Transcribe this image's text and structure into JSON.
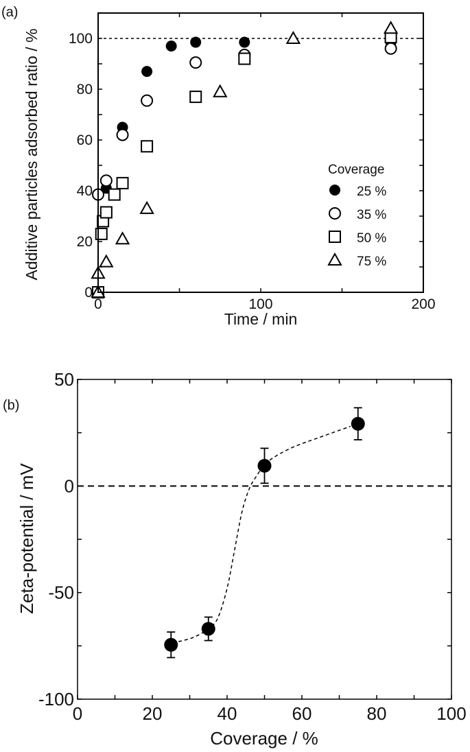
{
  "chart_data": [
    {
      "panel_label": "(a)",
      "type": "scatter",
      "xlabel": "Time / min",
      "ylabel": "Additive particles adsorbed ratio / %",
      "xlim": [
        0,
        200
      ],
      "ylim": [
        0,
        110
      ],
      "xticks": [
        0,
        100,
        200
      ],
      "yticks": [
        0,
        20,
        40,
        60,
        80,
        100
      ],
      "reference_line": {
        "y": 100,
        "style": "dotted"
      },
      "legend": {
        "title": "Coverage",
        "placement": "lower-right"
      },
      "series": [
        {
          "name": "25 %",
          "marker": "filled-circle",
          "x": [
            0,
            5,
            15,
            30,
            45,
            60,
            90,
            180
          ],
          "y": [
            0,
            41,
            65,
            87,
            97,
            98.5,
            98.5,
            98.5
          ]
        },
        {
          "name": "35 %",
          "marker": "open-circle",
          "x": [
            0,
            5,
            15,
            30,
            60,
            90,
            180
          ],
          "y": [
            38.5,
            44,
            62,
            75.5,
            90.5,
            93.5,
            96
          ]
        },
        {
          "name": "50 %",
          "marker": "open-square",
          "x": [
            0,
            2,
            3,
            5,
            10,
            15,
            30,
            60,
            90,
            180
          ],
          "y": [
            0,
            23,
            28,
            31.5,
            38.5,
            43,
            57.5,
            77,
            92,
            100.5
          ]
        },
        {
          "name": "75 %",
          "marker": "open-triangle",
          "x": [
            0,
            0,
            5,
            15,
            30,
            75,
            120,
            180
          ],
          "y": [
            0,
            7.5,
            12,
            21,
            33,
            79,
            100,
            104
          ]
        }
      ]
    },
    {
      "panel_label": "(b)",
      "type": "scatter",
      "xlabel": "Coverage / %",
      "ylabel": "Zeta-potential / mV",
      "xlim": [
        0,
        100
      ],
      "ylim": [
        -100,
        50
      ],
      "xticks": [
        0,
        20,
        40,
        60,
        80,
        100
      ],
      "yticks": [
        -100,
        -50,
        0,
        50
      ],
      "reference_line": {
        "y": 0,
        "style": "dashed"
      },
      "series": [
        {
          "marker": "filled-circle",
          "x": [
            25,
            35,
            50,
            75
          ],
          "y": [
            -74.5,
            -67,
            9.5,
            29.2
          ],
          "error": [
            6,
            5.5,
            8.2,
            7.5
          ]
        }
      ],
      "trend_curve": {
        "style": "dashed",
        "x": [
          27,
          31,
          35,
          37.5,
          40,
          42,
          44,
          46,
          48,
          50,
          53,
          58,
          65,
          73
        ],
        "y": [
          -73,
          -71,
          -67,
          -62,
          -48,
          -30,
          -12,
          -1,
          5,
          10,
          14,
          18.5,
          23,
          28
        ]
      }
    }
  ]
}
